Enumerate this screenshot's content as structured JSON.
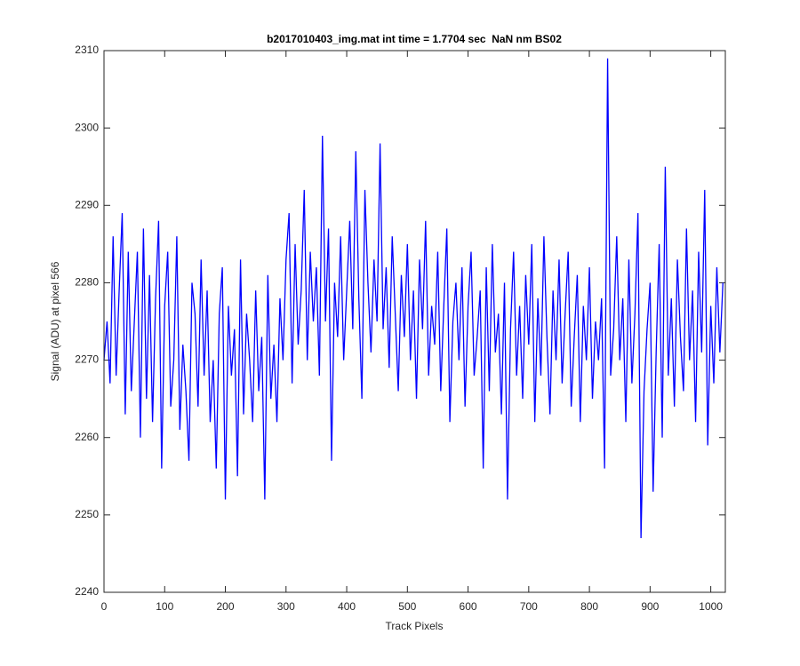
{
  "chart_data": {
    "type": "line",
    "title": "b2017010403_img.mat int time = 1.7704 sec  NaN nm BS02",
    "xlabel": "Track Pixels",
    "ylabel": "Signal (ADU) at pixel 566",
    "color": "#0000ff",
    "xlim": [
      0,
      1024
    ],
    "ylim": [
      2240,
      2310
    ],
    "xticks": [
      0,
      100,
      200,
      300,
      400,
      500,
      600,
      700,
      800,
      900,
      1000
    ],
    "yticks": [
      2240,
      2250,
      2260,
      2270,
      2280,
      2290,
      2300,
      2310
    ],
    "x": [
      0,
      5,
      10,
      15,
      20,
      25,
      30,
      35,
      40,
      45,
      50,
      55,
      60,
      65,
      70,
      75,
      80,
      85,
      90,
      95,
      100,
      105,
      110,
      115,
      120,
      125,
      130,
      135,
      140,
      145,
      150,
      155,
      160,
      165,
      170,
      175,
      180,
      185,
      190,
      195,
      200,
      205,
      210,
      215,
      220,
      225,
      230,
      235,
      240,
      245,
      250,
      255,
      260,
      265,
      270,
      275,
      280,
      285,
      290,
      295,
      300,
      305,
      310,
      315,
      320,
      325,
      330,
      335,
      340,
      345,
      350,
      355,
      360,
      365,
      370,
      375,
      380,
      385,
      390,
      395,
      400,
      405,
      410,
      415,
      420,
      425,
      430,
      435,
      440,
      445,
      450,
      455,
      460,
      465,
      470,
      475,
      480,
      485,
      490,
      495,
      500,
      505,
      510,
      515,
      520,
      525,
      530,
      535,
      540,
      545,
      550,
      555,
      560,
      565,
      570,
      575,
      580,
      585,
      590,
      595,
      600,
      605,
      610,
      615,
      620,
      625,
      630,
      635,
      640,
      645,
      650,
      655,
      660,
      665,
      670,
      675,
      680,
      685,
      690,
      695,
      700,
      705,
      710,
      715,
      720,
      725,
      730,
      735,
      740,
      745,
      750,
      755,
      760,
      765,
      770,
      775,
      780,
      785,
      790,
      795,
      800,
      805,
      810,
      815,
      820,
      825,
      830,
      835,
      840,
      845,
      850,
      855,
      860,
      865,
      870,
      875,
      880,
      885,
      890,
      895,
      900,
      905,
      910,
      915,
      920,
      925,
      930,
      935,
      940,
      945,
      950,
      955,
      960,
      965,
      970,
      975,
      980,
      985,
      990,
      995,
      1000,
      1005,
      1010,
      1015,
      1020
    ],
    "values": [
      2270,
      2275,
      2267,
      2286,
      2268,
      2279,
      2289,
      2263,
      2284,
      2266,
      2275,
      2284,
      2260,
      2287,
      2265,
      2281,
      2262,
      2278,
      2288,
      2256,
      2277,
      2284,
      2264,
      2270,
      2286,
      2261,
      2272,
      2266,
      2257,
      2280,
      2276,
      2264,
      2283,
      2268,
      2279,
      2262,
      2270,
      2256,
      2276,
      2282,
      2252,
      2277,
      2268,
      2274,
      2255,
      2283,
      2263,
      2276,
      2270,
      2262,
      2279,
      2266,
      2273,
      2252,
      2281,
      2265,
      2272,
      2262,
      2278,
      2270,
      2283,
      2289,
      2267,
      2285,
      2272,
      2279,
      2292,
      2270,
      2284,
      2275,
      2282,
      2268,
      2299,
      2275,
      2287,
      2257,
      2280,
      2273,
      2286,
      2270,
      2279,
      2288,
      2274,
      2297,
      2278,
      2265,
      2292,
      2280,
      2271,
      2283,
      2275,
      2298,
      2274,
      2282,
      2269,
      2286,
      2276,
      2266,
      2281,
      2273,
      2285,
      2270,
      2279,
      2265,
      2283,
      2274,
      2288,
      2268,
      2277,
      2272,
      2284,
      2266,
      2277,
      2287,
      2262,
      2275,
      2280,
      2270,
      2282,
      2264,
      2277,
      2284,
      2268,
      2273,
      2279,
      2256,
      2282,
      2266,
      2285,
      2271,
      2276,
      2263,
      2280,
      2252,
      2274,
      2284,
      2268,
      2277,
      2265,
      2281,
      2272,
      2285,
      2262,
      2278,
      2268,
      2286,
      2273,
      2263,
      2279,
      2270,
      2283,
      2267,
      2276,
      2284,
      2264,
      2273,
      2281,
      2262,
      2277,
      2270,
      2282,
      2265,
      2275,
      2270,
      2278,
      2256,
      2309,
      2268,
      2274,
      2286,
      2270,
      2278,
      2262,
      2283,
      2267,
      2276,
      2289,
      2247,
      2266,
      2274,
      2280,
      2253,
      2271,
      2285,
      2260,
      2295,
      2268,
      2278,
      2264,
      2283,
      2273,
      2266,
      2287,
      2270,
      2279,
      2262,
      2284,
      2271,
      2292,
      2259,
      2277,
      2267,
      2282,
      2271,
      2280
    ]
  }
}
